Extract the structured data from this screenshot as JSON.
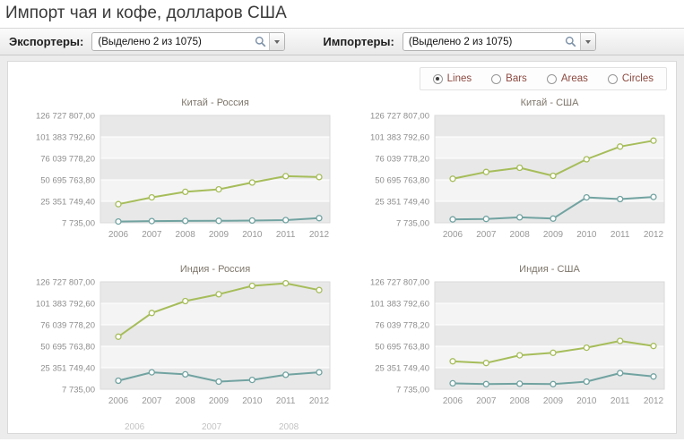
{
  "page": {
    "title": "Импорт чая и кофе, долларов США"
  },
  "toolbar": {
    "exporters": {
      "label": "Экспортеры:",
      "value": "(Выделено 2 из 1075)"
    },
    "importers": {
      "label": "Импортеры:",
      "value": "(Выделено 2 из 1075)"
    }
  },
  "chart_type_options": [
    {
      "label": "Lines",
      "selected": true
    },
    {
      "label": "Bars",
      "selected": false
    },
    {
      "label": "Areas",
      "selected": false
    },
    {
      "label": "Circles",
      "selected": false
    }
  ],
  "axis": {
    "y_tick_labels": [
      "7 735,00",
      "25 351 749,40",
      "50 695 763,80",
      "76 039 778,20",
      "101 383 792,60",
      "126 727 807,00"
    ],
    "x_labels": [
      "2006",
      "2007",
      "2008",
      "2009",
      "2010",
      "2011",
      "2012"
    ]
  },
  "ghost_x_labels": [
    "2006",
    "2007",
    "2008"
  ],
  "colors": {
    "series1": "#a6bd5a",
    "series2": "#71a3a1",
    "band_dark": "#e8e8e8",
    "band_light": "#f4f4f4"
  },
  "chart_data": [
    {
      "type": "line",
      "title": "Китай - Россия",
      "x": [
        2006,
        2007,
        2008,
        2009,
        2010,
        2011,
        2012
      ],
      "ylim": [
        7735,
        126727807
      ],
      "series": [
        {
          "name": "series-1",
          "color": "#a6bd5a",
          "values": [
            22000000,
            30000000,
            36500000,
            39500000,
            47500000,
            55000000,
            54000000
          ]
        },
        {
          "name": "series-2",
          "color": "#71a3a1",
          "values": [
            1500000,
            2000000,
            2200000,
            2300000,
            2600000,
            3200000,
            5500000
          ]
        }
      ]
    },
    {
      "type": "line",
      "title": "Китай - США",
      "x": [
        2006,
        2007,
        2008,
        2009,
        2010,
        2011,
        2012
      ],
      "ylim": [
        7735,
        126727807
      ],
      "series": [
        {
          "name": "series-1",
          "color": "#a6bd5a",
          "values": [
            52000000,
            60000000,
            65000000,
            55500000,
            75000000,
            90000000,
            97000000
          ]
        },
        {
          "name": "series-2",
          "color": "#71a3a1",
          "values": [
            4000000,
            4500000,
            6500000,
            5000000,
            30000000,
            28000000,
            30500000
          ]
        }
      ]
    },
    {
      "type": "line",
      "title": "Индия - Россия",
      "x": [
        2006,
        2007,
        2008,
        2009,
        2010,
        2011,
        2012
      ],
      "ylim": [
        7735,
        126727807
      ],
      "series": [
        {
          "name": "series-1",
          "color": "#a6bd5a",
          "values": [
            62000000,
            90000000,
            104000000,
            112000000,
            122000000,
            125000000,
            117000000
          ]
        },
        {
          "name": "series-2",
          "color": "#71a3a1",
          "values": [
            10000000,
            20000000,
            17500000,
            9000000,
            11000000,
            17000000,
            20000000
          ]
        }
      ]
    },
    {
      "type": "line",
      "title": "Индия - США",
      "x": [
        2006,
        2007,
        2008,
        2009,
        2010,
        2011,
        2012
      ],
      "ylim": [
        7735,
        126727807
      ],
      "series": [
        {
          "name": "series-1",
          "color": "#a6bd5a",
          "values": [
            33000000,
            31000000,
            40000000,
            43000000,
            49000000,
            57000000,
            51000000
          ]
        },
        {
          "name": "series-2",
          "color": "#71a3a1",
          "values": [
            7000000,
            6000000,
            6500000,
            6000000,
            9000000,
            19000000,
            15000000
          ]
        }
      ]
    }
  ]
}
